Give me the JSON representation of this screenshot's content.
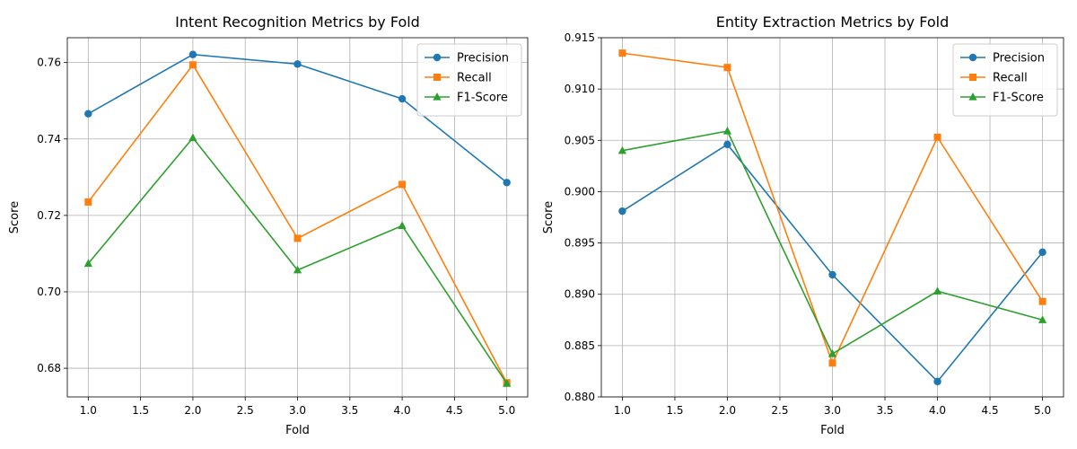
{
  "chart_data": [
    {
      "type": "line",
      "title": "Intent Recognition Metrics by Fold",
      "xlabel": "Fold",
      "ylabel": "Score",
      "x": [
        1.0,
        2.0,
        3.0,
        4.0,
        5.0
      ],
      "xlim": [
        0.8,
        5.2
      ],
      "ylim": [
        0.6725,
        0.7665
      ],
      "xticks": [
        1.0,
        1.5,
        2.0,
        2.5,
        3.0,
        3.5,
        4.0,
        4.5,
        5.0
      ],
      "xtick_labels": [
        "1.0",
        "1.5",
        "2.0",
        "2.5",
        "3.0",
        "3.5",
        "4.0",
        "4.5",
        "5.0"
      ],
      "yticks": [
        0.68,
        0.7,
        0.72,
        0.74,
        0.76
      ],
      "ytick_labels": [
        "0.68",
        "0.70",
        "0.72",
        "0.74",
        "0.76"
      ],
      "grid": true,
      "legend_position": "top-right",
      "series": [
        {
          "name": "Precision",
          "marker": "circle",
          "color": "#1f77b4",
          "values": [
            0.7466,
            0.7621,
            0.7596,
            0.7505,
            0.7286
          ]
        },
        {
          "name": "Recall",
          "marker": "square",
          "color": "#ff7f0e",
          "values": [
            0.7235,
            0.7594,
            0.714,
            0.7281,
            0.6762
          ]
        },
        {
          "name": "F1-Score",
          "marker": "triangle",
          "color": "#2ca02c",
          "values": [
            0.7074,
            0.7403,
            0.7057,
            0.7173,
            0.676
          ]
        }
      ]
    },
    {
      "type": "line",
      "title": "Entity Extraction Metrics by Fold",
      "xlabel": "Fold",
      "ylabel": "Score",
      "x": [
        1.0,
        2.0,
        3.0,
        4.0,
        5.0
      ],
      "xlim": [
        0.8,
        5.2
      ],
      "ylim": [
        0.88,
        0.915
      ],
      "xticks": [
        1.0,
        1.5,
        2.0,
        2.5,
        3.0,
        3.5,
        4.0,
        4.5,
        5.0
      ],
      "xtick_labels": [
        "1.0",
        "1.5",
        "2.0",
        "2.5",
        "3.0",
        "3.5",
        "4.0",
        "4.5",
        "5.0"
      ],
      "yticks": [
        0.88,
        0.885,
        0.89,
        0.895,
        0.9,
        0.905,
        0.91,
        0.915
      ],
      "ytick_labels": [
        "0.880",
        "0.885",
        "0.890",
        "0.895",
        "0.900",
        "0.905",
        "0.910",
        "0.915"
      ],
      "grid": true,
      "legend_position": "top-right",
      "series": [
        {
          "name": "Precision",
          "marker": "circle",
          "color": "#1f77b4",
          "values": [
            0.8981,
            0.9046,
            0.8919,
            0.8815,
            0.8941
          ]
        },
        {
          "name": "Recall",
          "marker": "square",
          "color": "#ff7f0e",
          "values": [
            0.9135,
            0.9121,
            0.8833,
            0.9053,
            0.8893
          ]
        },
        {
          "name": "F1-Score",
          "marker": "triangle",
          "color": "#2ca02c",
          "values": [
            0.904,
            0.9059,
            0.8842,
            0.8903,
            0.8875
          ]
        }
      ]
    }
  ]
}
